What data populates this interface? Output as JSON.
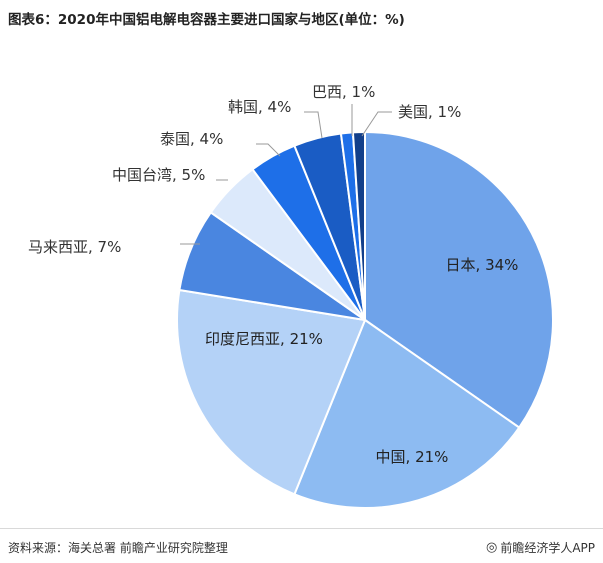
{
  "title": "图表6：2020年中国铝电解电容器主要进口国家与地区(单位：%)",
  "chart_data": {
    "type": "pie",
    "title": "图表6：2020年中国铝电解电容器主要进口国家与地区(单位：%)",
    "labels": [
      "日本",
      "中国",
      "印度尼西亚",
      "马来西亚",
      "中国台湾",
      "泰国",
      "韩国",
      "巴西",
      "美国"
    ],
    "values": [
      34,
      21,
      21,
      7,
      5,
      4,
      4,
      1,
      1
    ],
    "label_texts": [
      "日本, 34%",
      "中国, 21%",
      "印度尼西亚, 21%",
      "马来西亚, 7%",
      "中国台湾, 5%",
      "泰国, 4%",
      "韩国, 4%",
      "巴西, 1%",
      "美国, 1%"
    ],
    "colors": [
      "#6fa3ea",
      "#8dbbf2",
      "#b4d2f7",
      "#4a86e0",
      "#dce9fb",
      "#1e6fe8",
      "#1a5cc4",
      "#1e6fe8",
      "#123f8a"
    ],
    "start_angle": 0,
    "direction": "clockwise"
  },
  "footer": {
    "source": "资料来源：海关总署 前瞻产业研究院整理",
    "brand": "前瞻经济学人APP",
    "brand_icon": "brand-logo-icon"
  }
}
